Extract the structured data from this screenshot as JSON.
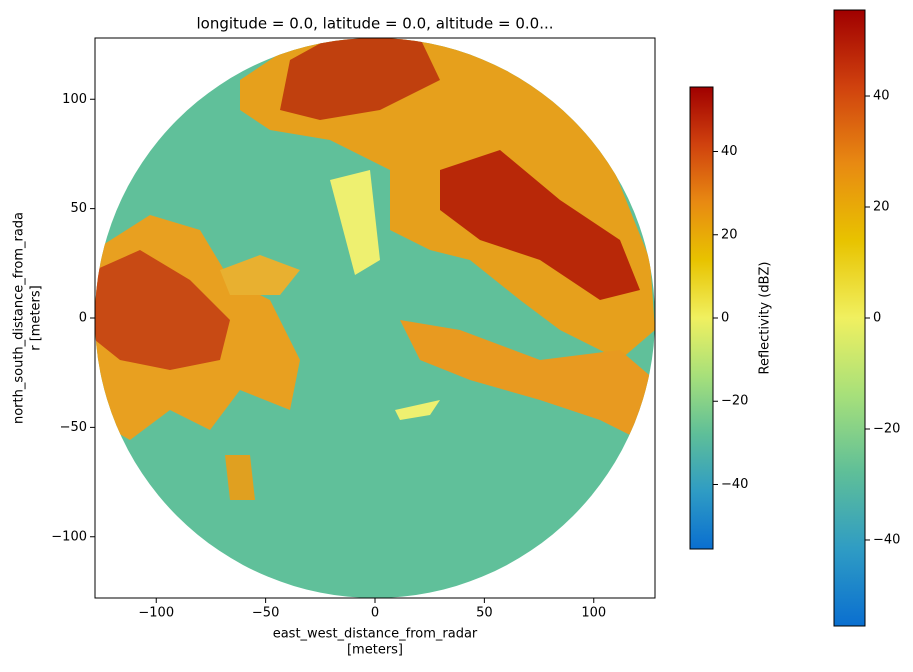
{
  "chart_data": {
    "type": "radar-ppi",
    "title": "longitude = 0.0, latitude = 0.0, altitude = 0.0...",
    "x_label": [
      "east_west_distance_from_radar",
      "[meters]"
    ],
    "y_label": [
      "north_south_distance_from_rada",
      "r [meters]"
    ],
    "xlim": [
      -128,
      128
    ],
    "ylim": [
      -128,
      128
    ],
    "xticks": [
      {
        "value": -100,
        "label": "−100"
      },
      {
        "value": -50,
        "label": "−50"
      },
      0,
      50,
      100
    ],
    "yticks": [
      {
        "value": -100,
        "label": "−100"
      },
      {
        "value": -50,
        "label": "−50"
      },
      0,
      50,
      100
    ],
    "colorbars": [
      {
        "label": "Reflectivity (dBZ)",
        "clim": [
          -55.5,
          55.5
        ],
        "ticks": [
          {
            "value": -40,
            "label": "−40"
          },
          {
            "value": -20,
            "label": "−20"
          },
          0,
          20,
          40
        ]
      },
      {
        "clim": [
          -55.5,
          55.5
        ],
        "ticks": [
          {
            "value": -40,
            "label": "−40"
          },
          {
            "value": -20,
            "label": "−20"
          },
          0,
          20,
          40
        ]
      }
    ],
    "colormap": [
      "#0a6fd0",
      "#2f9cc4",
      "#5fbf98",
      "#a7e07a",
      "#f0f060",
      "#e8c300",
      "#e88a12",
      "#d0420e",
      "#a00000"
    ],
    "background_color": "#60c09a"
  }
}
